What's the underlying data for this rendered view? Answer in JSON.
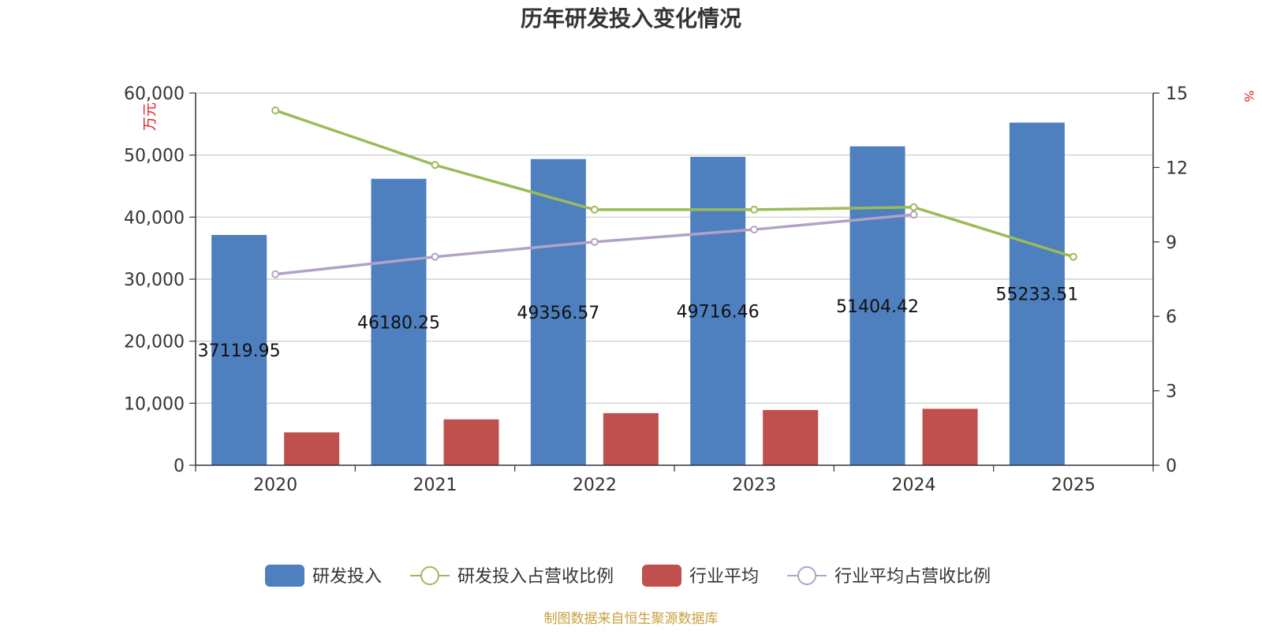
{
  "chart_data": {
    "type": "bar",
    "title": "历年研发投入变化情况",
    "categories": [
      "2020",
      "2021",
      "2022",
      "2023",
      "2024",
      "2025"
    ],
    "y_left": {
      "label": "万元",
      "ylim": [
        0,
        60000
      ],
      "ticks": [
        "0",
        "10,000",
        "20,000",
        "30,000",
        "40,000",
        "50,000",
        "60,000"
      ],
      "tick_values": [
        0,
        10000,
        20000,
        30000,
        40000,
        50000,
        60000
      ]
    },
    "y_right": {
      "label": "%",
      "ylim": [
        0,
        15
      ],
      "ticks": [
        "0",
        "3",
        "6",
        "9",
        "12",
        "15"
      ],
      "tick_values": [
        0,
        3,
        6,
        9,
        12,
        15
      ]
    },
    "series": [
      {
        "name": "研发投入",
        "type": "bar",
        "axis": "left",
        "color": "#4e7fbf",
        "values": [
          37119.95,
          46180.25,
          49356.57,
          49716.46,
          51404.42,
          55233.51
        ],
        "labels": [
          "37119.95",
          "46180.25",
          "49356.57",
          "49716.46",
          "51404.42",
          "55233.51"
        ]
      },
      {
        "name": "行业平均",
        "type": "bar",
        "axis": "left",
        "color": "#c0504d",
        "values": [
          5300,
          7400,
          8400,
          8900,
          9100,
          null
        ]
      },
      {
        "name": "研发投入占营收比例",
        "type": "line",
        "axis": "right",
        "color": "#9bbb59",
        "values": [
          14.3,
          12.1,
          10.3,
          10.3,
          10.4,
          8.4
        ]
      },
      {
        "name": "行业平均占营收比例",
        "type": "line",
        "axis": "right",
        "color": "#b3a2c7",
        "values": [
          7.7,
          8.4,
          9.0,
          9.5,
          10.1,
          null
        ]
      }
    ],
    "grid": true,
    "legend_position": "bottom",
    "source_note": "制图数据来自恒生聚源数据库"
  }
}
